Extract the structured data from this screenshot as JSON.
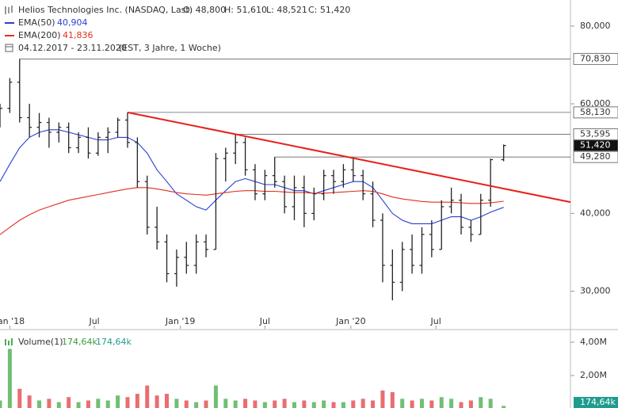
{
  "chart_data": [
    {
      "type": "ohlc",
      "title": "Helios Technologies Inc. (NASDAQ, Last)",
      "ohlc_labels": [
        "O: 48,800",
        "H: 51,610",
        "L: 48,521",
        "C: 51,420"
      ],
      "subtitle": "04.12.2017 - 23.11.2020",
      "note": "(EST, 3 Jahre, 1 Woche)",
      "last_label": "51,420",
      "log_scale": true,
      "xlim": [
        "2017-12-11",
        "2021-04-15"
      ],
      "ylim": [
        26.1,
        88.1
      ],
      "yticks": [
        {
          "value": 30,
          "label": "30,000"
        },
        {
          "value": 40,
          "label": "40,000"
        },
        {
          "value": 60,
          "label": "60,000"
        },
        {
          "value": 80,
          "label": "80,000"
        }
      ],
      "xticks": [
        {
          "value": "2018-01-01",
          "label": "Jan '18"
        },
        {
          "value": "2018-07-01",
          "label": "Jul"
        },
        {
          "value": "2019-01-01",
          "label": "Jan '19"
        },
        {
          "value": "2019-07-01",
          "label": "Jul"
        },
        {
          "value": "2020-01-01",
          "label": "Jan '20"
        },
        {
          "value": "2020-07-01",
          "label": "Jul"
        }
      ],
      "x": [
        "2017-12-11",
        "2018-01-01",
        "2018-01-22",
        "2018-02-12",
        "2018-03-05",
        "2018-03-26",
        "2018-04-16",
        "2018-05-07",
        "2018-05-28",
        "2018-06-18",
        "2018-07-09",
        "2018-07-30",
        "2018-08-20",
        "2018-09-10",
        "2018-10-01",
        "2018-10-22",
        "2018-11-12",
        "2018-12-03",
        "2018-12-24",
        "2019-01-14",
        "2019-02-04",
        "2019-02-25",
        "2019-03-18",
        "2019-04-08",
        "2019-04-29",
        "2019-05-20",
        "2019-06-10",
        "2019-07-01",
        "2019-07-22",
        "2019-08-12",
        "2019-09-02",
        "2019-09-23",
        "2019-10-14",
        "2019-11-04",
        "2019-11-25",
        "2019-12-16",
        "2020-01-06",
        "2020-01-27",
        "2020-02-17",
        "2020-03-09",
        "2020-03-30",
        "2020-04-20",
        "2020-05-11",
        "2020-06-01",
        "2020-06-22",
        "2020-07-13",
        "2020-08-03",
        "2020-08-24",
        "2020-09-14",
        "2020-10-05",
        "2020-10-26",
        "2020-11-23"
      ],
      "series": [
        {
          "name": "Helios Technologies Inc.",
          "color": "#222222",
          "open": [
            56,
            59,
            65,
            57,
            55,
            56,
            54,
            55,
            51,
            53,
            50,
            53,
            54,
            56.5,
            52,
            45,
            38,
            36,
            32,
            34,
            33,
            36,
            35,
            49,
            50,
            52,
            47,
            43,
            46,
            45,
            41,
            44,
            40,
            43,
            46,
            45,
            47,
            46,
            43,
            39,
            33,
            31,
            35,
            33,
            37,
            35,
            41,
            42,
            38,
            37,
            42,
            48.8
          ],
          "high": [
            60,
            66,
            70.83,
            60,
            58,
            57,
            56,
            56,
            54,
            55,
            54,
            55,
            57,
            58.13,
            53,
            46,
            41,
            37,
            35,
            36,
            37,
            37,
            50,
            51,
            53.595,
            53,
            48,
            47,
            49.28,
            46,
            46,
            46,
            44,
            47,
            47,
            48,
            49,
            47,
            45,
            40,
            35,
            36,
            37,
            38,
            39,
            42,
            44,
            43,
            39,
            43,
            49,
            51.61
          ],
          "low": [
            55,
            58,
            56,
            53,
            53,
            51,
            52,
            50,
            50,
            49,
            49.5,
            50,
            53,
            51,
            44,
            37,
            35,
            31,
            30.5,
            32,
            32,
            34,
            35,
            45,
            48,
            46,
            42,
            42,
            44,
            40,
            39,
            38,
            39,
            42,
            43,
            44,
            45,
            42,
            38,
            31,
            29,
            30,
            32,
            32,
            34,
            35,
            40,
            37,
            36,
            37,
            41,
            48.521
          ],
          "close": [
            59,
            65,
            57,
            55,
            56,
            54,
            55,
            51,
            53,
            50,
            53,
            54,
            56.5,
            52,
            45,
            38,
            36,
            32,
            34,
            33,
            36,
            35,
            49,
            50,
            52,
            47,
            43,
            46,
            45,
            41,
            44,
            40,
            43,
            46,
            45,
            47,
            46,
            43,
            39,
            33,
            31,
            35,
            33,
            37,
            35,
            41,
            42,
            38,
            37,
            42,
            48.8,
            51.42
          ]
        },
        {
          "name": "EMA(50)",
          "color": "#2a3fd4",
          "value_label": "40,904",
          "values": [
            45,
            48,
            51,
            53,
            54,
            54.5,
            54.5,
            54,
            53.5,
            53,
            52.5,
            52.5,
            53,
            53,
            52,
            50,
            47,
            45,
            43,
            42,
            41,
            40.5,
            42,
            43.5,
            45,
            45.5,
            45,
            44.5,
            44.5,
            44,
            43.5,
            43.5,
            43,
            43.5,
            44,
            44.5,
            45,
            45,
            44,
            42,
            40,
            39,
            38.5,
            38.5,
            38.5,
            39,
            39.5,
            39.5,
            39,
            39.5,
            40.2,
            40.904
          ]
        },
        {
          "name": "EMA(200)",
          "color": "#e0301e",
          "value_label": "41,836",
          "values": [
            37,
            38,
            39,
            39.8,
            40.5,
            41,
            41.5,
            42,
            42.3,
            42.6,
            42.9,
            43.2,
            43.5,
            43.8,
            44,
            44,
            43.8,
            43.5,
            43.2,
            43,
            42.9,
            42.8,
            43,
            43.2,
            43.4,
            43.5,
            43.5,
            43.4,
            43.4,
            43.3,
            43.2,
            43.2,
            43.1,
            43.1,
            43.2,
            43.3,
            43.4,
            43.5,
            43.4,
            43,
            42.5,
            42.2,
            42,
            41.8,
            41.7,
            41.7,
            41.7,
            41.6,
            41.5,
            41.5,
            41.6,
            41.836
          ]
        }
      ],
      "levels": [
        {
          "value": 70.83,
          "label": "70,830",
          "from": "2018-01-22"
        },
        {
          "value": 58.13,
          "label": "58,130",
          "from": "2018-09-10"
        },
        {
          "value": 53.595,
          "label": "53,595",
          "from": "2019-04-29"
        },
        {
          "value": 49.28,
          "label": "49,280",
          "from": "2019-07-22"
        }
      ],
      "trendline": {
        "color": "#e8201a",
        "x": [
          "2018-09-10",
          "2021-04-15"
        ],
        "values": [
          58.13,
          41.7
        ]
      }
    },
    {
      "type": "bar",
      "title": "Volume(1)",
      "legend_values": [
        "174,64k",
        "174,64k"
      ],
      "last_label": "174,64k",
      "up_color": "#4caf50",
      "down_color": "#e5484d",
      "ylim": [
        0,
        4.57
      ],
      "yticks": [
        {
          "value": 2,
          "label": "2,00M"
        },
        {
          "value": 4,
          "label": "4,00M"
        }
      ],
      "values": [
        0.5,
        3.6,
        1.2,
        0.8,
        0.5,
        0.6,
        0.4,
        0.7,
        0.4,
        0.5,
        0.6,
        0.5,
        0.8,
        0.7,
        0.9,
        1.4,
        0.8,
        0.9,
        0.6,
        0.5,
        0.4,
        0.5,
        1.4,
        0.6,
        0.5,
        0.6,
        0.5,
        0.4,
        0.5,
        0.6,
        0.4,
        0.5,
        0.4,
        0.5,
        0.4,
        0.4,
        0.5,
        0.6,
        0.5,
        1.1,
        1.0,
        0.6,
        0.5,
        0.6,
        0.5,
        0.7,
        0.6,
        0.4,
        0.5,
        0.7,
        0.6,
        0.17464
      ]
    }
  ]
}
